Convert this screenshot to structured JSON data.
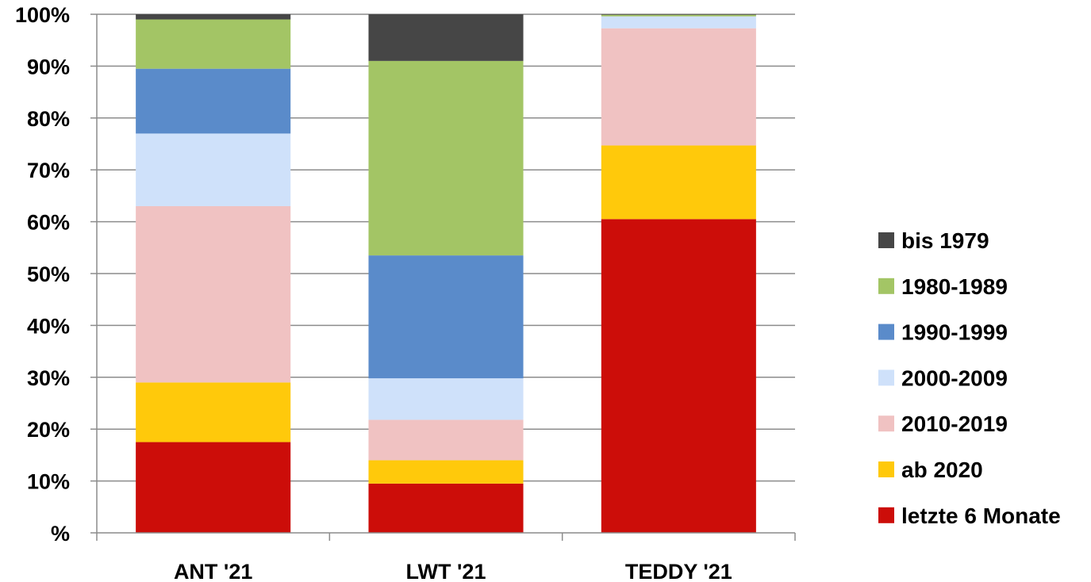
{
  "chart_data": {
    "type": "bar",
    "stacked": true,
    "normalized": true,
    "categories": [
      "ANT '21",
      "LWT '21",
      "TEDDY '21"
    ],
    "y_ticks": [
      "%",
      "10%",
      "20%",
      "30%",
      "40%",
      "50%",
      "60%",
      "70%",
      "80%",
      "90%",
      "100%"
    ],
    "ylim": [
      0,
      100
    ],
    "grid": true,
    "legend": "right",
    "series": [
      {
        "name": "letzte 6 Monate",
        "color": "#cc0d09",
        "values": [
          17.5,
          9.5,
          60.5
        ]
      },
      {
        "name": "ab 2020",
        "color": "#ffc90b",
        "values": [
          11.5,
          4.5,
          14.2
        ]
      },
      {
        "name": "2010-2019",
        "color": "#f0c2c2",
        "values": [
          34.0,
          7.8,
          22.6
        ]
      },
      {
        "name": "2000-2009",
        "color": "#cfe1fa",
        "values": [
          14.0,
          8.0,
          2.3
        ]
      },
      {
        "name": "1990-1999",
        "color": "#5a8bca",
        "values": [
          12.5,
          23.7,
          0.0
        ]
      },
      {
        "name": "1980-1989",
        "color": "#a3c565",
        "values": [
          9.5,
          37.5,
          0.3
        ]
      },
      {
        "name": "bis 1979",
        "color": "#464646",
        "values": [
          1.0,
          9.0,
          0.1
        ]
      }
    ],
    "legend_order": [
      "bis 1979",
      "1980-1989",
      "1990-1999",
      "2000-2009",
      "2010-2019",
      "ab 2020",
      "letzte 6 Monate"
    ]
  }
}
